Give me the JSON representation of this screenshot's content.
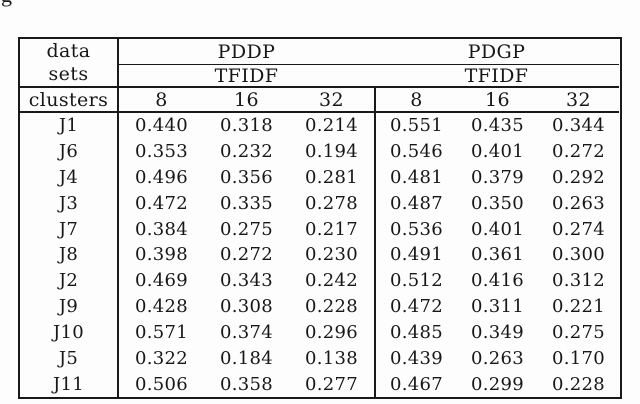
{
  "stray_text": "g",
  "table": {
    "corner": {
      "line1": "data",
      "line2": "sets",
      "clusters_label": "clusters"
    },
    "groups": [
      {
        "name": "PDDP",
        "weighting": "TFIDF",
        "cluster_sizes": [
          "8",
          "16",
          "32"
        ]
      },
      {
        "name": "PDGP",
        "weighting": "TFIDF",
        "cluster_sizes": [
          "8",
          "16",
          "32"
        ]
      }
    ],
    "rows": [
      {
        "label": "J1",
        "pddp": [
          "0.440",
          "0.318",
          "0.214"
        ],
        "pdgp": [
          "0.551",
          "0.435",
          "0.344"
        ]
      },
      {
        "label": "J6",
        "pddp": [
          "0.353",
          "0.232",
          "0.194"
        ],
        "pdgp": [
          "0.546",
          "0.401",
          "0.272"
        ]
      },
      {
        "label": "J4",
        "pddp": [
          "0.496",
          "0.356",
          "0.281"
        ],
        "pdgp": [
          "0.481",
          "0.379",
          "0.292"
        ]
      },
      {
        "label": "J3",
        "pddp": [
          "0.472",
          "0.335",
          "0.278"
        ],
        "pdgp": [
          "0.487",
          "0.350",
          "0.263"
        ]
      },
      {
        "label": "J7",
        "pddp": [
          "0.384",
          "0.275",
          "0.217"
        ],
        "pdgp": [
          "0.536",
          "0.401",
          "0.274"
        ]
      },
      {
        "label": "J8",
        "pddp": [
          "0.398",
          "0.272",
          "0.230"
        ],
        "pdgp": [
          "0.491",
          "0.361",
          "0.300"
        ]
      },
      {
        "label": "J2",
        "pddp": [
          "0.469",
          "0.343",
          "0.242"
        ],
        "pdgp": [
          "0.512",
          "0.416",
          "0.312"
        ]
      },
      {
        "label": "J9",
        "pddp": [
          "0.428",
          "0.308",
          "0.228"
        ],
        "pdgp": [
          "0.472",
          "0.311",
          "0.221"
        ]
      },
      {
        "label": "J10",
        "pddp": [
          "0.571",
          "0.374",
          "0.296"
        ],
        "pdgp": [
          "0.485",
          "0.349",
          "0.275"
        ]
      },
      {
        "label": "J5",
        "pddp": [
          "0.322",
          "0.184",
          "0.138"
        ],
        "pdgp": [
          "0.439",
          "0.263",
          "0.170"
        ]
      },
      {
        "label": "J11",
        "pddp": [
          "0.506",
          "0.358",
          "0.277"
        ],
        "pdgp": [
          "0.467",
          "0.299",
          "0.228"
        ]
      }
    ]
  }
}
